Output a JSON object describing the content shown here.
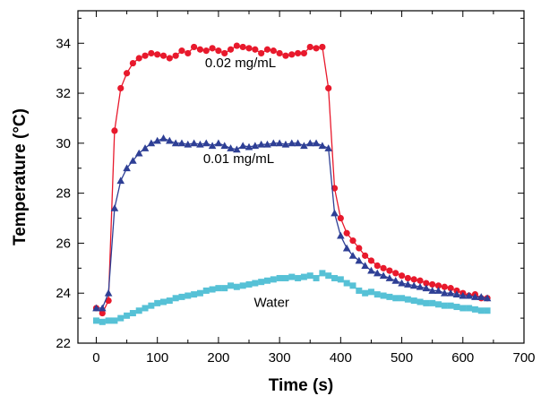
{
  "chart_data": {
    "type": "line",
    "title": "",
    "xlabel": "Time (s)",
    "ylabel": "Temperature (°C)",
    "xlim": [
      -30,
      700
    ],
    "ylim": [
      22,
      35.3
    ],
    "xticks": [
      0,
      100,
      200,
      300,
      400,
      500,
      600,
      700
    ],
    "yticks": [
      22,
      24,
      26,
      28,
      30,
      32,
      34
    ],
    "grid": false,
    "legend": "none",
    "series": [
      {
        "name": "0.02 mg/mL",
        "color": "#e8192c",
        "marker": "circle",
        "x": [
          0,
          10,
          20,
          30,
          40,
          50,
          60,
          70,
          80,
          90,
          100,
          110,
          120,
          130,
          140,
          150,
          160,
          170,
          180,
          190,
          200,
          210,
          220,
          230,
          240,
          250,
          260,
          270,
          280,
          290,
          300,
          310,
          320,
          330,
          340,
          350,
          360,
          370,
          380,
          390,
          400,
          410,
          420,
          430,
          440,
          450,
          460,
          470,
          480,
          490,
          500,
          510,
          520,
          530,
          540,
          550,
          560,
          570,
          580,
          590,
          600,
          610,
          620,
          630,
          640
        ],
        "y": [
          23.4,
          23.2,
          23.7,
          30.5,
          32.2,
          32.8,
          33.2,
          33.4,
          33.5,
          33.6,
          33.55,
          33.5,
          33.4,
          33.5,
          33.7,
          33.6,
          33.85,
          33.75,
          33.7,
          33.8,
          33.7,
          33.6,
          33.75,
          33.9,
          33.85,
          33.8,
          33.75,
          33.6,
          33.75,
          33.7,
          33.6,
          33.5,
          33.55,
          33.6,
          33.6,
          33.85,
          33.8,
          33.85,
          32.2,
          28.2,
          27.0,
          26.4,
          26.1,
          25.8,
          25.5,
          25.3,
          25.1,
          25.0,
          24.9,
          24.8,
          24.7,
          24.6,
          24.55,
          24.5,
          24.4,
          24.35,
          24.3,
          24.25,
          24.2,
          24.1,
          24.0,
          23.9,
          23.95,
          23.8,
          23.8
        ]
      },
      {
        "name": "0.01 mg/mL",
        "color": "#2e3f95",
        "marker": "triangle",
        "x": [
          0,
          10,
          20,
          30,
          40,
          50,
          60,
          70,
          80,
          90,
          100,
          110,
          120,
          130,
          140,
          150,
          160,
          170,
          180,
          190,
          200,
          210,
          220,
          230,
          240,
          250,
          260,
          270,
          280,
          290,
          300,
          310,
          320,
          330,
          340,
          350,
          360,
          370,
          380,
          390,
          400,
          410,
          420,
          430,
          440,
          450,
          460,
          470,
          480,
          490,
          500,
          510,
          520,
          530,
          540,
          550,
          560,
          570,
          580,
          590,
          600,
          610,
          620,
          630,
          640
        ],
        "y": [
          23.4,
          23.4,
          24.0,
          27.4,
          28.5,
          29.0,
          29.3,
          29.6,
          29.8,
          30.0,
          30.1,
          30.2,
          30.1,
          30.0,
          30.0,
          29.95,
          30.0,
          29.95,
          30.0,
          29.9,
          30.0,
          29.9,
          29.8,
          29.75,
          29.9,
          29.85,
          29.9,
          29.95,
          29.95,
          30.0,
          30.0,
          29.95,
          30.0,
          30.0,
          29.9,
          30.0,
          30.0,
          29.9,
          29.8,
          27.2,
          26.3,
          25.8,
          25.5,
          25.3,
          25.1,
          24.9,
          24.8,
          24.7,
          24.6,
          24.5,
          24.4,
          24.35,
          24.3,
          24.25,
          24.2,
          24.1,
          24.1,
          24.0,
          24.0,
          23.95,
          23.9,
          23.9,
          23.85,
          23.85,
          23.8
        ]
      },
      {
        "name": "Water",
        "color": "#56c1d6",
        "marker": "square",
        "x": [
          0,
          10,
          20,
          30,
          40,
          50,
          60,
          70,
          80,
          90,
          100,
          110,
          120,
          130,
          140,
          150,
          160,
          170,
          180,
          190,
          200,
          210,
          220,
          230,
          240,
          250,
          260,
          270,
          280,
          290,
          300,
          310,
          320,
          330,
          340,
          350,
          360,
          370,
          380,
          390,
          400,
          410,
          420,
          430,
          440,
          450,
          460,
          470,
          480,
          490,
          500,
          510,
          520,
          530,
          540,
          550,
          560,
          570,
          580,
          590,
          600,
          610,
          620,
          630,
          640
        ],
        "y": [
          22.9,
          22.85,
          22.9,
          22.9,
          23.0,
          23.1,
          23.2,
          23.3,
          23.4,
          23.5,
          23.6,
          23.65,
          23.7,
          23.8,
          23.85,
          23.9,
          23.95,
          24.0,
          24.1,
          24.15,
          24.2,
          24.2,
          24.3,
          24.25,
          24.3,
          24.35,
          24.4,
          24.45,
          24.5,
          24.55,
          24.6,
          24.6,
          24.65,
          24.6,
          24.65,
          24.7,
          24.6,
          24.8,
          24.7,
          24.6,
          24.55,
          24.4,
          24.3,
          24.1,
          24.0,
          24.05,
          23.95,
          23.9,
          23.85,
          23.8,
          23.8,
          23.75,
          23.7,
          23.65,
          23.6,
          23.6,
          23.55,
          23.5,
          23.5,
          23.45,
          23.4,
          23.4,
          23.35,
          23.3,
          23.3
        ]
      }
    ],
    "annotations": [
      {
        "text": "0.02 mg/mL",
        "x": 178,
        "y": 33.05
      },
      {
        "text": "0.01 mg/mL",
        "x": 175,
        "y": 29.2
      },
      {
        "text": "Water",
        "x": 258,
        "y": 23.45
      }
    ]
  }
}
